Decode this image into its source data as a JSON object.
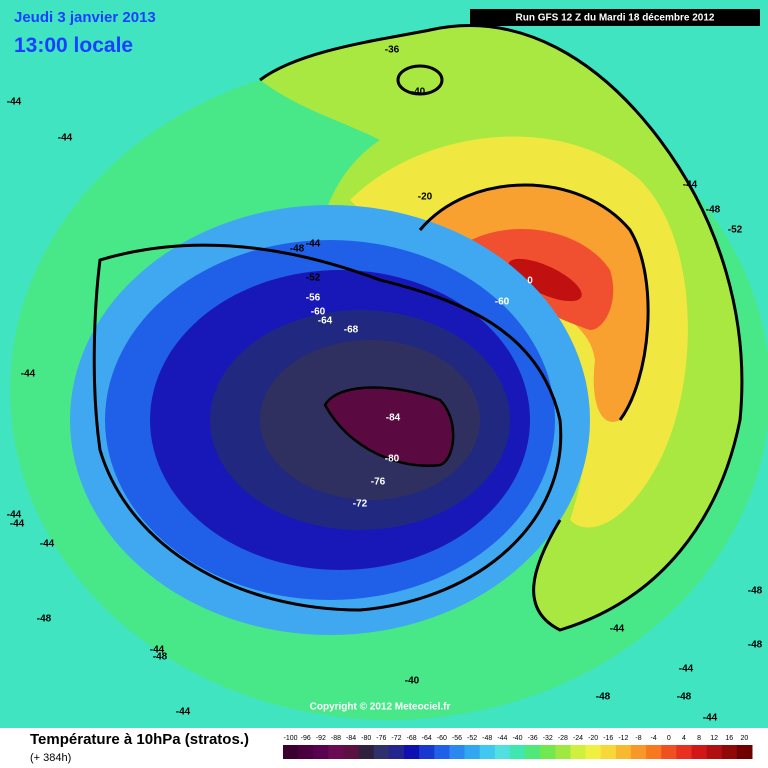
{
  "header": {
    "date": "Jeudi 3 janvier 2013",
    "time": "13:00 locale",
    "run": "Run GFS 12 Z du Mardi 18 décembre 2012"
  },
  "copyright": "Copyright © 2012 Meteociel.fr",
  "footer": {
    "title": "Température à 10hPa (stratos.)",
    "subtitle": "(+ 384h)"
  },
  "contour_labels": [
    "-36",
    "-40",
    "-44",
    "-44",
    "-44",
    "-48",
    "-52",
    "-20",
    "-44",
    "-48",
    "-52",
    "-56",
    "-60",
    "-64",
    "-68",
    "0",
    "-60",
    "-84",
    "-80",
    "-76",
    "-72",
    "-44",
    "-44",
    "-44",
    "-44",
    "-48",
    "-44",
    "-48",
    "-40",
    "-44",
    "-48",
    "-48",
    "-44",
    "-48",
    "-44",
    "-44",
    "-48"
  ],
  "colorbar": {
    "labels": [
      "-100",
      "-96",
      "-92",
      "-88",
      "-84",
      "-80",
      "-76",
      "-72",
      "-68",
      "-64",
      "-60",
      "-56",
      "-52",
      "-48",
      "-44",
      "-40",
      "-36",
      "-32",
      "-28",
      "-24",
      "-20",
      "-16",
      "-12",
      "-8",
      "-4",
      "0",
      "4",
      "8",
      "12",
      "16",
      "20"
    ],
    "colors": [
      "#3a0030",
      "#4a0040",
      "#5a0050",
      "#6a0a50",
      "#5a1040",
      "#302040",
      "#30306a",
      "#252590",
      "#1010b0",
      "#1838d0",
      "#2060e8",
      "#2a88f0",
      "#30a8f0",
      "#40c8f0",
      "#50e0e0",
      "#40e8b0",
      "#50e878",
      "#70e850",
      "#a0e840",
      "#d0f040",
      "#f0f040",
      "#f8d838",
      "#f8b830",
      "#f89828",
      "#f87820",
      "#f05020",
      "#e83020",
      "#d01818",
      "#b01010",
      "#900808",
      "#700000"
    ]
  }
}
